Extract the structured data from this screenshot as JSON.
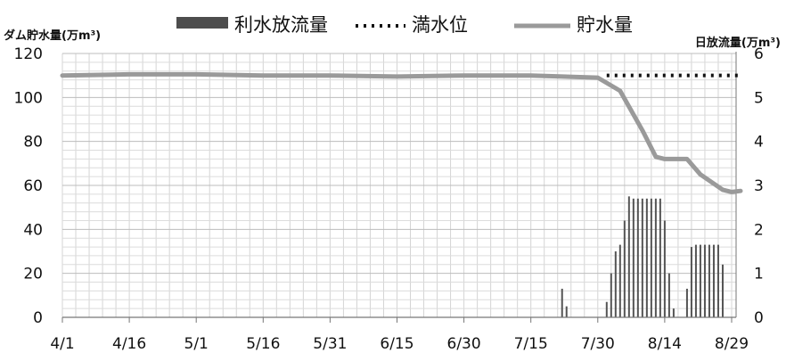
{
  "chart_data": {
    "type": "bar+line",
    "left_axis_title": "ダム貯水量(万m³)",
    "right_axis_title": "日放流量(万m³)",
    "legend": [
      {
        "label": "利水放流量",
        "style": "bar",
        "color": "#555555"
      },
      {
        "label": "満水位",
        "style": "dotted",
        "color": "#111111"
      },
      {
        "label": "貯水量",
        "style": "line",
        "color": "#9a9a9a"
      }
    ],
    "x_ticks": [
      "4/1",
      "4/16",
      "5/1",
      "5/16",
      "5/31",
      "6/15",
      "6/30",
      "7/15",
      "7/30",
      "8/14",
      "8/29"
    ],
    "x_range_days": [
      0,
      151
    ],
    "y_left": {
      "ticks": [
        "0",
        "20",
        "40",
        "60",
        "80",
        "100",
        "120"
      ],
      "range": [
        0,
        120
      ]
    },
    "y_right": {
      "ticks": [
        "0",
        "1",
        "2",
        "3",
        "4",
        "5",
        "6"
      ],
      "range": [
        0,
        6
      ]
    },
    "storage_series": {
      "name": "貯水量",
      "points": [
        [
          "4/1",
          110
        ],
        [
          "4/16",
          110.5
        ],
        [
          "5/1",
          110.5
        ],
        [
          "5/16",
          110
        ],
        [
          "5/31",
          110
        ],
        [
          "6/15",
          109.5
        ],
        [
          "6/30",
          110
        ],
        [
          "7/15",
          110
        ],
        [
          "7/30",
          109
        ],
        [
          "8/4",
          103
        ],
        [
          "8/9",
          85
        ],
        [
          "8/12",
          73
        ],
        [
          "8/14",
          72
        ],
        [
          "8/19",
          72
        ],
        [
          "8/22",
          65
        ],
        [
          "8/27",
          58
        ],
        [
          "8/29",
          57
        ],
        [
          "8/31",
          57.5
        ]
      ]
    },
    "full_water_level": {
      "name": "満水位",
      "value": 110,
      "dotted_segment_from": "8/1",
      "dotted_segment_to": "8/31"
    },
    "release_series": {
      "name": "利水放流量",
      "unit": "万m³/day",
      "bars": [
        [
          "7/22",
          0.65
        ],
        [
          "7/23",
          0.25
        ],
        [
          "8/1",
          0.35
        ],
        [
          "8/2",
          1.0
        ],
        [
          "8/3",
          1.5
        ],
        [
          "8/4",
          1.65
        ],
        [
          "8/5",
          2.2
        ],
        [
          "8/6",
          2.75
        ],
        [
          "8/7",
          2.7
        ],
        [
          "8/8",
          2.7
        ],
        [
          "8/9",
          2.7
        ],
        [
          "8/10",
          2.7
        ],
        [
          "8/11",
          2.7
        ],
        [
          "8/12",
          2.7
        ],
        [
          "8/13",
          2.7
        ],
        [
          "8/14",
          2.2
        ],
        [
          "8/15",
          1.0
        ],
        [
          "8/16",
          0.2
        ],
        [
          "8/19",
          0.65
        ],
        [
          "8/20",
          1.6
        ],
        [
          "8/21",
          1.65
        ],
        [
          "8/22",
          1.65
        ],
        [
          "8/23",
          1.65
        ],
        [
          "8/24",
          1.65
        ],
        [
          "8/25",
          1.65
        ],
        [
          "8/26",
          1.65
        ],
        [
          "8/27",
          1.2
        ]
      ]
    },
    "grid": true
  }
}
